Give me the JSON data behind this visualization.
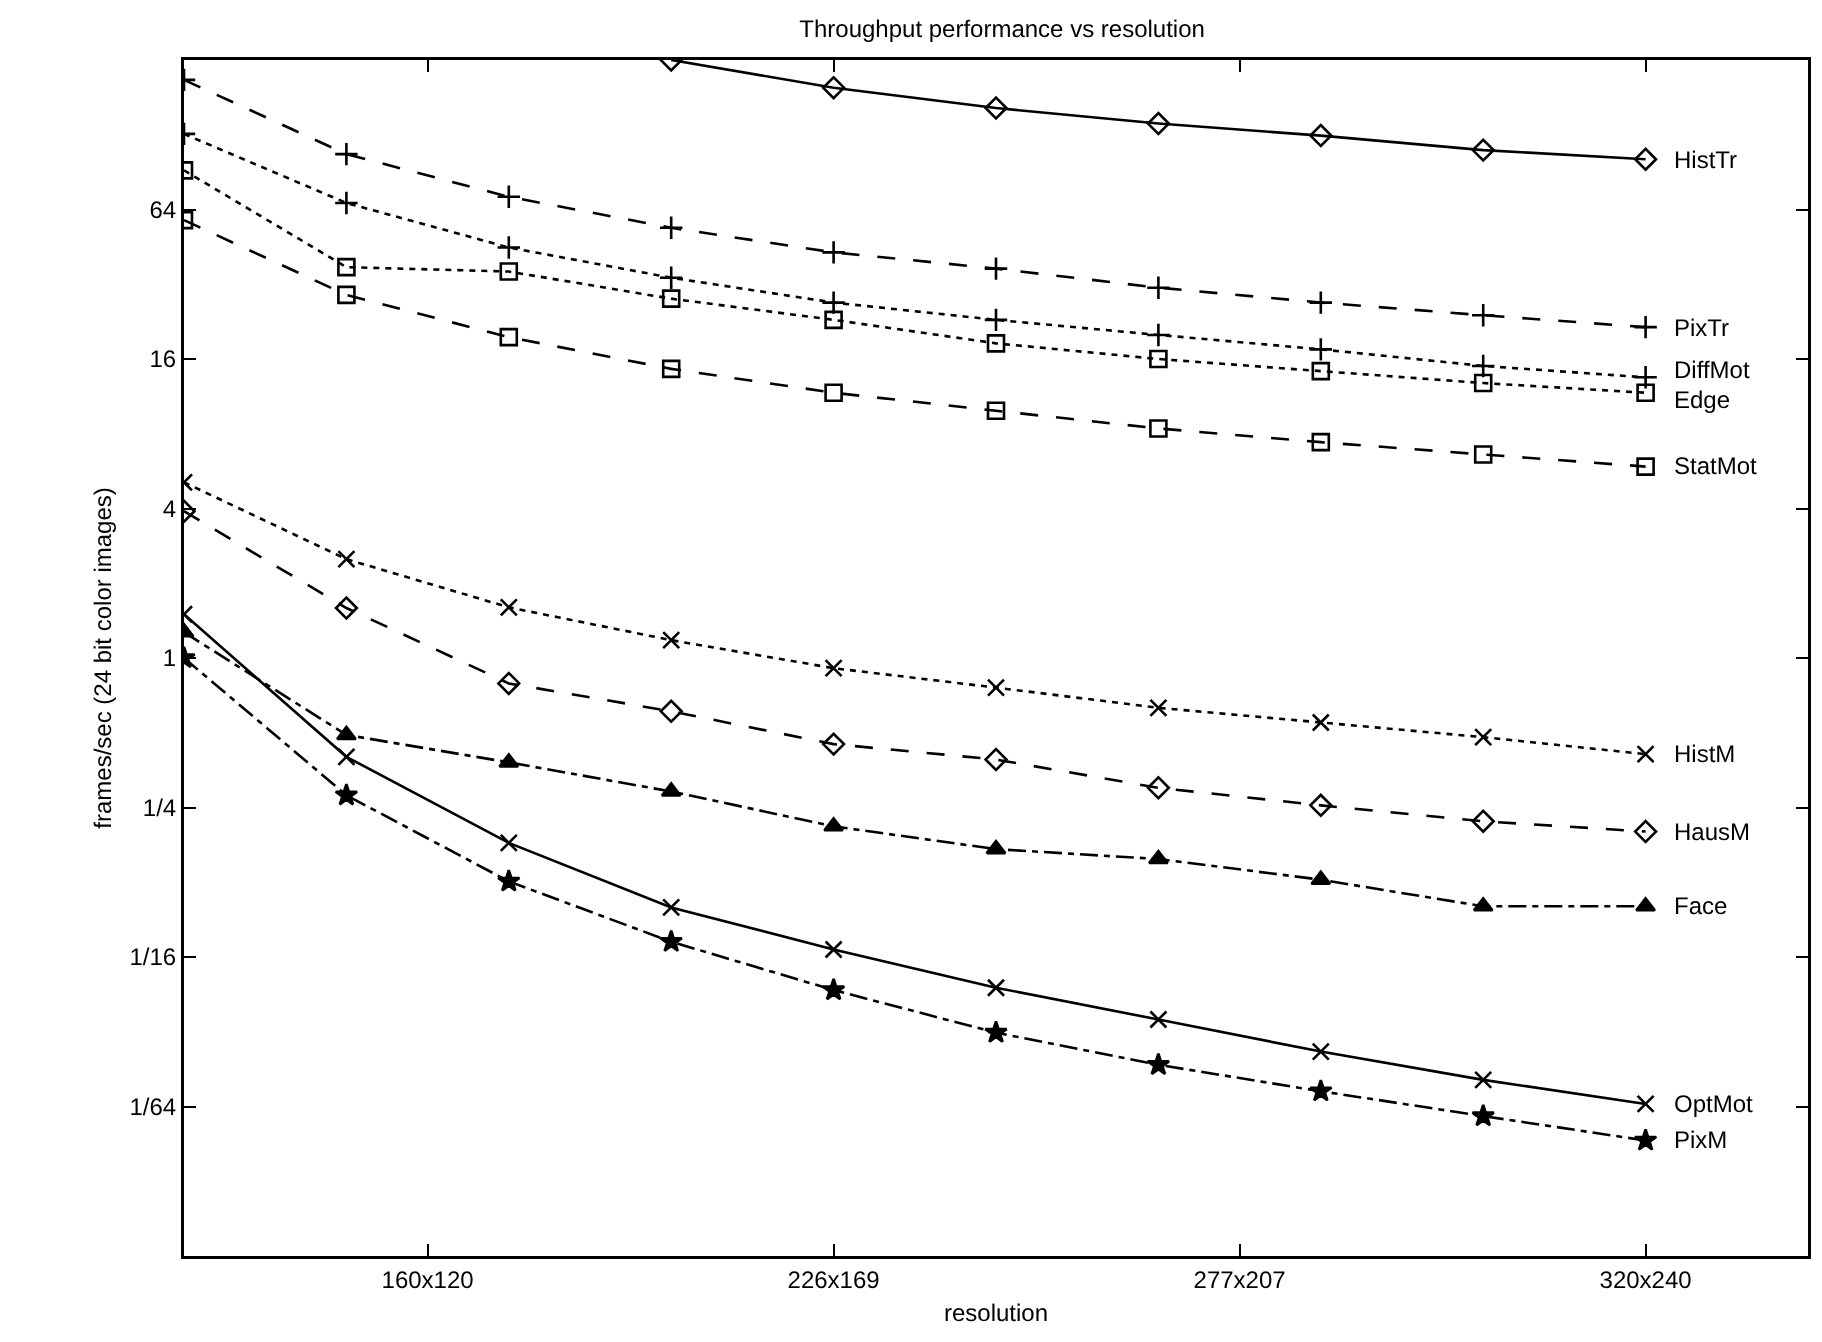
{
  "chart_data": {
    "type": "line",
    "title": "Throughput performance vs resolution",
    "xlabel": "resolution",
    "ylabel": "frames/sec (24 bit color images)",
    "categories": [
      null,
      null,
      null,
      "160x120",
      null,
      null,
      null,
      null,
      "226x169",
      null,
      null,
      null,
      null,
      "277x207",
      null,
      null,
      null,
      null,
      "320x240"
    ],
    "log": "y",
    "ylim": [
      0.00390625,
      256
    ],
    "yticks": [
      {
        "value": 0.015625,
        "label": "1/64"
      },
      {
        "value": 0.0625,
        "label": "1/16"
      },
      {
        "value": 0.25,
        "label": "1/4"
      },
      1,
      4,
      16,
      64
    ],
    "grid": false,
    "legend": "right",
    "series": [
      {
        "name": "HistTr",
        "color": "#000000",
        "line_style": "solid",
        "marker": "diamond",
        "values": [
          null,
          null,
          null,
          null,
          null,
          null,
          256,
          null,
          198,
          null,
          164,
          null,
          142,
          null,
          127,
          null,
          111,
          null,
          102
        ]
      },
      {
        "name": "PixTr",
        "color": "#000000",
        "line_style": "dashed",
        "marker": "cross",
        "values": [
          213,
          null,
          107,
          null,
          72,
          null,
          54,
          null,
          43,
          null,
          37,
          null,
          31,
          null,
          27,
          null,
          24,
          null,
          21.5
        ]
      },
      {
        "name": "DiffMot",
        "color": "#000000",
        "line_style": "dotted",
        "marker": "cross",
        "values": [
          129,
          null,
          68,
          null,
          45,
          null,
          34,
          null,
          27,
          null,
          23,
          null,
          20,
          null,
          17.5,
          null,
          15,
          null,
          13.5
        ]
      },
      {
        "name": "Edge",
        "color": "#000000",
        "line_style": "dotted",
        "marker": "square",
        "values": [
          92,
          null,
          37.5,
          null,
          36,
          null,
          28,
          null,
          23,
          null,
          18.5,
          null,
          16,
          null,
          14.3,
          null,
          12.8,
          null,
          11.7
        ]
      },
      {
        "name": "StatMot",
        "color": "#000000",
        "line_style": "dashed",
        "marker": "square",
        "values": [
          58,
          null,
          29,
          null,
          19.6,
          null,
          14.6,
          null,
          11.7,
          null,
          9.9,
          null,
          8.4,
          null,
          7.4,
          null,
          6.6,
          null,
          5.9
        ]
      },
      {
        "name": "HistM",
        "color": "#000000",
        "line_style": "dotted",
        "marker": "x",
        "values": [
          5.1,
          null,
          2.5,
          null,
          1.6,
          null,
          1.18,
          null,
          0.91,
          null,
          0.76,
          null,
          0.63,
          null,
          0.55,
          null,
          0.48,
          null,
          0.41
        ]
      },
      {
        "name": "HausM",
        "color": "#000000",
        "line_style": "dashed",
        "marker": "diamond",
        "values": [
          3.9,
          null,
          1.59,
          null,
          0.79,
          null,
          0.61,
          null,
          0.45,
          null,
          0.39,
          null,
          0.3,
          null,
          0.255,
          null,
          0.22,
          null,
          0.2
        ]
      },
      {
        "name": "Face",
        "color": "#000000",
        "line_style": "dashdot",
        "marker": "triangle",
        "values": [
          1.27,
          null,
          0.49,
          null,
          0.38,
          null,
          0.29,
          null,
          0.21,
          null,
          0.17,
          null,
          0.155,
          null,
          0.128,
          null,
          0.1,
          null,
          0.1
        ]
      },
      {
        "name": "OptMot",
        "color": "#000000",
        "line_style": "solid",
        "marker": "x",
        "values": [
          1.5,
          null,
          0.4,
          null,
          0.18,
          null,
          0.099,
          null,
          0.067,
          null,
          0.047,
          null,
          0.035,
          null,
          0.026,
          null,
          0.02,
          null,
          0.016
        ]
      },
      {
        "name": "PixM",
        "color": "#000000",
        "line_style": "dashdot",
        "marker": "star",
        "values": [
          1.0,
          null,
          0.28,
          null,
          0.126,
          null,
          0.072,
          null,
          0.046,
          null,
          0.031,
          null,
          0.023,
          null,
          0.018,
          null,
          0.0143,
          null,
          0.0114
        ]
      }
    ]
  }
}
